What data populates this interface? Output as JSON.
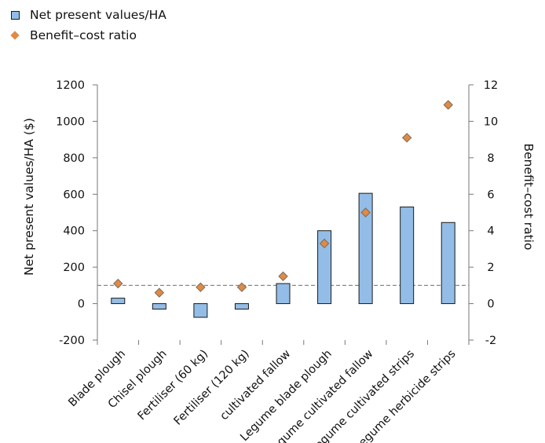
{
  "chart_data": {
    "type": "bar",
    "categories": [
      "Blade plough",
      "Chisel plough",
      "Fertiliser (60 kg)",
      "Fertiliser (120 kg)",
      "cultivated fallow",
      "Legume blade plough",
      "Legume cultivated fallow",
      "Legume cultivated strips",
      "Legume herbicide strips"
    ],
    "series": [
      {
        "name": "Net present values/HA",
        "kind": "bar",
        "axis": "left",
        "values": [
          30,
          -30,
          -75,
          -30,
          110,
          400,
          605,
          530,
          445
        ]
      },
      {
        "name": "Benefit–cost ratio",
        "kind": "marker",
        "axis": "right",
        "values": [
          1.1,
          0.6,
          0.9,
          0.9,
          1.5,
          3.3,
          5.0,
          9.1,
          10.9
        ]
      }
    ],
    "ylabel": "Net present values/HA ($)",
    "y2label": "Benefit–cost ratio",
    "ylim": [
      -200,
      1200
    ],
    "y2lim": [
      -2,
      12
    ],
    "yticks": [
      "-200",
      "0",
      "200",
      "400",
      "600",
      "800",
      "1000",
      "1200"
    ],
    "y2ticks": [
      "-2",
      "0",
      "2",
      "4",
      "6",
      "8",
      "10",
      "12"
    ],
    "reference_line": {
      "axis": "right",
      "value": 1
    },
    "legend_position": "top-left",
    "grid": false,
    "colors": {
      "bar": "#93bde6",
      "bar_border": "#1a1a1a",
      "marker": "#e08a45",
      "marker_border": "#7a6a5a",
      "reference_line": "#888888"
    }
  }
}
